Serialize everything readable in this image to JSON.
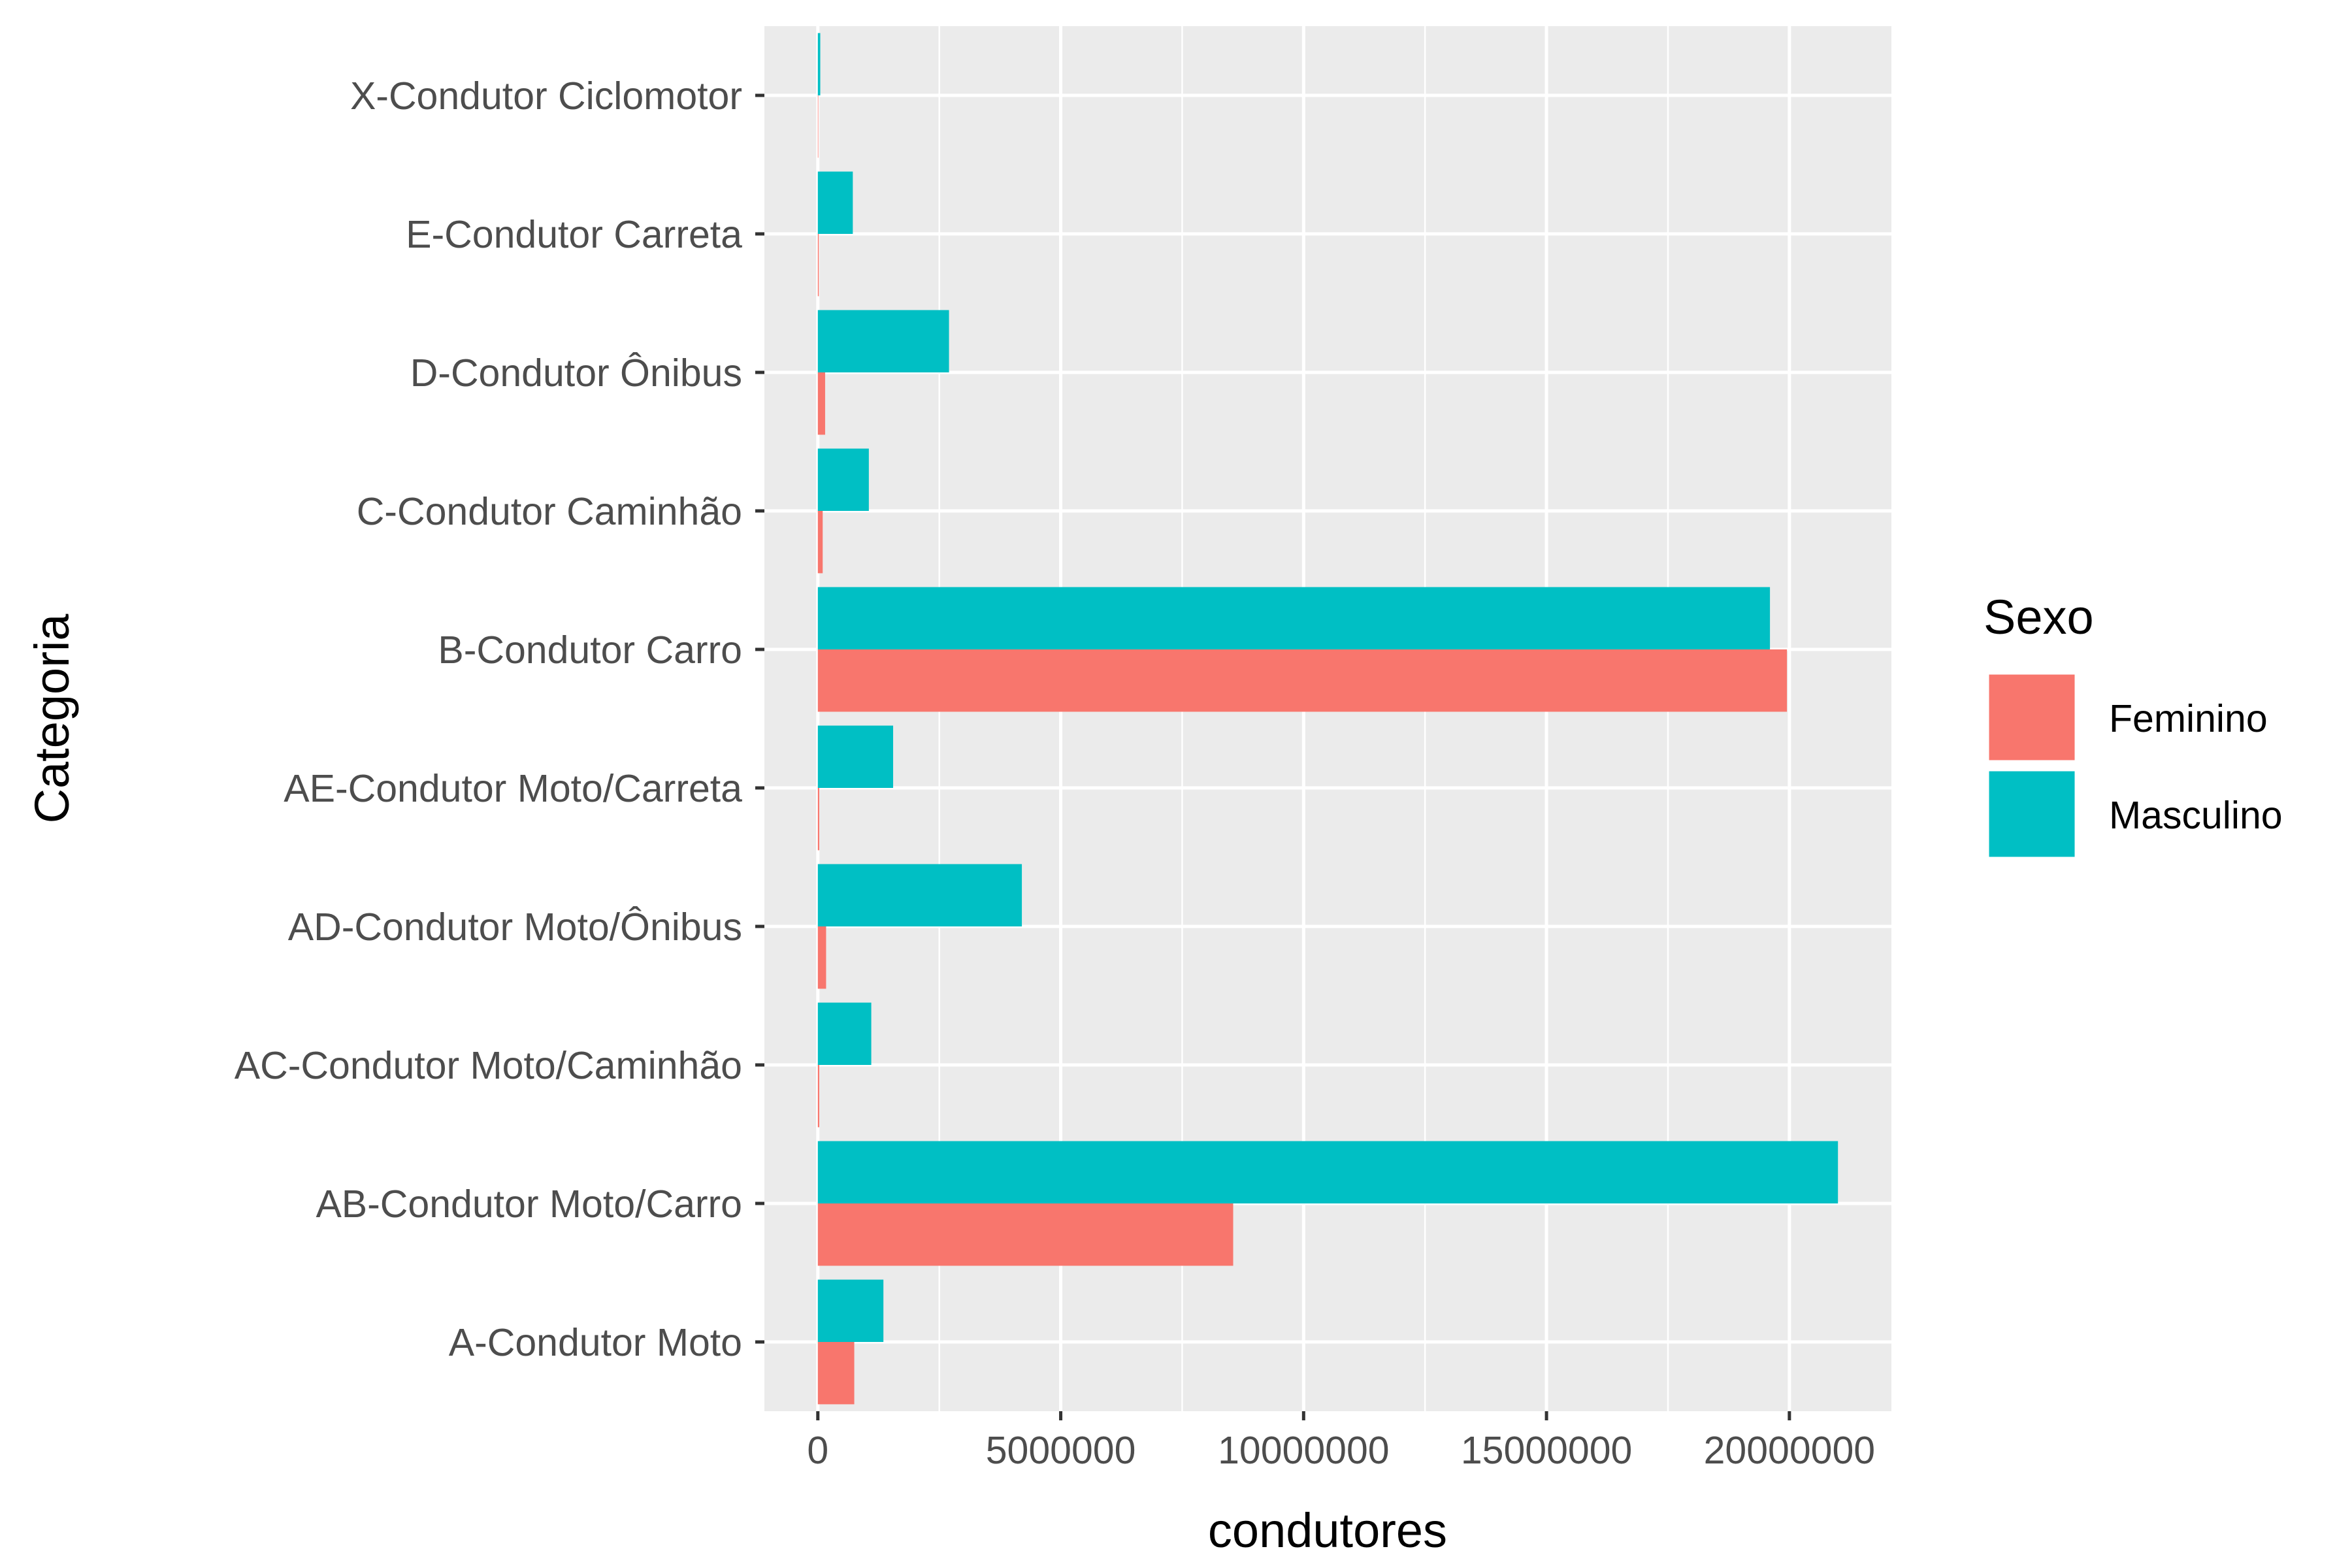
{
  "chart_data": {
    "type": "bar",
    "orientation": "horizontal",
    "position": "dodge",
    "title": "",
    "xlabel": "condutores",
    "ylabel": "Categoria",
    "xlim": [
      -1100000,
      22100000
    ],
    "x_ticks": [
      0,
      5000000,
      10000000,
      15000000,
      20000000
    ],
    "x_tick_labels": [
      "0",
      "5000000",
      "10000000",
      "15000000",
      "20000000"
    ],
    "grid": true,
    "legend": {
      "title": "Sexo",
      "position": "right"
    },
    "categories": [
      "A-Condutor Moto",
      "AB-Condutor Moto/Carro",
      "AC-Condutor Moto/Caminhão",
      "AD-Condutor Moto/Ônibus",
      "AE-Condutor Moto/Carreta",
      "B-Condutor Carro",
      "C-Condutor Caminhão",
      "D-Condutor Ônibus",
      "E-Condutor Carreta",
      "X-Condutor Ciclomotor"
    ],
    "series": [
      {
        "name": "Feminino",
        "color": "#F8766D",
        "values": [
          750000,
          8550000,
          30000,
          170000,
          30000,
          19950000,
          100000,
          150000,
          20000,
          10000
        ]
      },
      {
        "name": "Masculino",
        "color": "#00BFC4",
        "values": [
          1350000,
          21000000,
          1100000,
          4200000,
          1550000,
          19600000,
          1050000,
          2700000,
          720000,
          50000
        ]
      }
    ]
  }
}
